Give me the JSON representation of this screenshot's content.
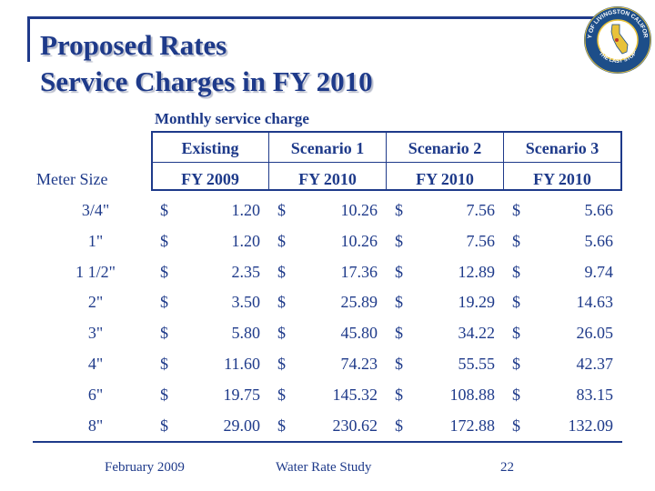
{
  "title_line1": "Proposed Rates",
  "title_line2": "Service Charges in FY 2010",
  "seal_text_top": "CITY OF LIVINGSTON CALIFORNIA",
  "seal_text_bottom": "\"THE LAST STOP\"",
  "section_label": "Monthly service charge",
  "meter_label": "Meter Size",
  "scenarios": [
    "Existing",
    "Scenario 1",
    "Scenario 2",
    "Scenario 3"
  ],
  "years": [
    "FY 2009",
    "FY 2010",
    "FY 2010",
    "FY 2010"
  ],
  "currency": "$",
  "rows": [
    {
      "size": "3/4\"",
      "values": [
        "1.20",
        "10.26",
        "7.56",
        "5.66"
      ]
    },
    {
      "size": "1\"",
      "values": [
        "1.20",
        "10.26",
        "7.56",
        "5.66"
      ]
    },
    {
      "size": "1 1/2\"",
      "values": [
        "2.35",
        "17.36",
        "12.89",
        "9.74"
      ]
    },
    {
      "size": "2\"",
      "values": [
        "3.50",
        "25.89",
        "19.29",
        "14.63"
      ]
    },
    {
      "size": "3\"",
      "values": [
        "5.80",
        "45.80",
        "34.22",
        "26.05"
      ]
    },
    {
      "size": "4\"",
      "values": [
        "11.60",
        "74.23",
        "55.55",
        "42.37"
      ]
    },
    {
      "size": "6\"",
      "values": [
        "19.75",
        "145.32",
        "108.88",
        "83.15"
      ]
    },
    {
      "size": "8\"",
      "values": [
        "29.00",
        "230.62",
        "172.88",
        "132.09"
      ]
    }
  ],
  "footer": {
    "date": "February 2009",
    "study": "Water Rate Study",
    "page": "22"
  },
  "colors": {
    "primary": "#1e3a8a",
    "seal_blue": "#1d4e89",
    "seal_gold": "#e8c23a"
  }
}
